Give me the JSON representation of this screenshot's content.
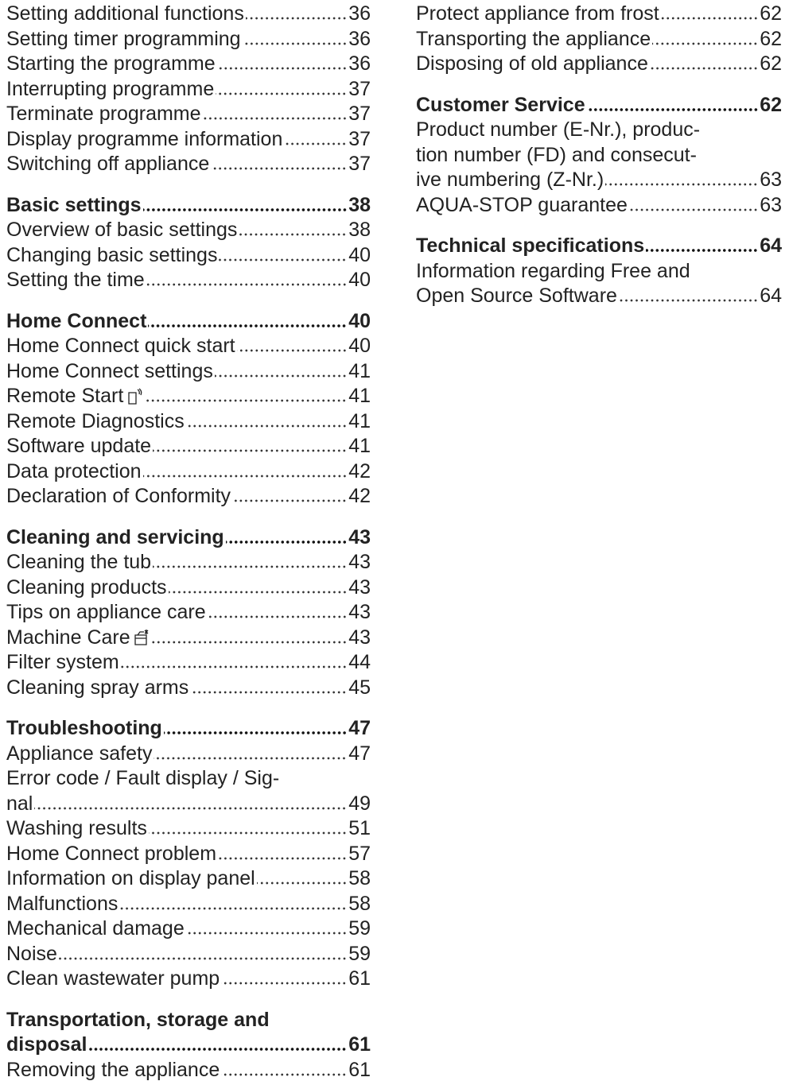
{
  "columns": [
    {
      "sections": [
        {
          "entries": [
            {
              "lines": [
                "Setting additional functions"
              ],
              "page": 36
            },
            {
              "lines": [
                "Setting timer programming"
              ],
              "page": 36
            },
            {
              "lines": [
                "Starting the programme"
              ],
              "page": 36
            },
            {
              "lines": [
                "Interrupting programme"
              ],
              "page": 37
            },
            {
              "lines": [
                "Terminate programme"
              ],
              "page": 37
            },
            {
              "lines": [
                "Display programme information"
              ],
              "page": 37
            },
            {
              "lines": [
                "Switching off appliance"
              ],
              "page": 37
            }
          ]
        },
        {
          "heading": {
            "lines": [
              "Basic settings"
            ],
            "page": 38
          },
          "entries": [
            {
              "lines": [
                "Overview of basic settings"
              ],
              "page": 38
            },
            {
              "lines": [
                "Changing basic settings"
              ],
              "page": 40
            },
            {
              "lines": [
                "Setting the time"
              ],
              "page": 40
            }
          ]
        },
        {
          "heading": {
            "lines": [
              "Home Connect"
            ],
            "page": 40
          },
          "entries": [
            {
              "lines": [
                "Home Connect quick start"
              ],
              "page": 40
            },
            {
              "lines": [
                "Home Connect settings"
              ],
              "page": 41
            },
            {
              "lines": [
                "Remote Start"
              ],
              "page": 41,
              "icon": "remote-start"
            },
            {
              "lines": [
                "Remote Diagnostics"
              ],
              "page": 41
            },
            {
              "lines": [
                "Software update"
              ],
              "page": 41
            },
            {
              "lines": [
                "Data protection"
              ],
              "page": 42
            },
            {
              "lines": [
                "Declaration of Conformity"
              ],
              "page": 42
            }
          ]
        },
        {
          "heading": {
            "lines": [
              "Cleaning and servicing"
            ],
            "page": 43
          },
          "entries": [
            {
              "lines": [
                "Cleaning the tub"
              ],
              "page": 43
            },
            {
              "lines": [
                "Cleaning products"
              ],
              "page": 43
            },
            {
              "lines": [
                "Tips on appliance care"
              ],
              "page": 43
            },
            {
              "lines": [
                "Machine Care"
              ],
              "page": 43,
              "icon": "machine-care"
            },
            {
              "lines": [
                "Filter system"
              ],
              "page": 44
            },
            {
              "lines": [
                "Cleaning spray arms"
              ],
              "page": 45
            }
          ]
        },
        {
          "heading": {
            "lines": [
              "Troubleshooting"
            ],
            "page": 47
          },
          "entries": [
            {
              "lines": [
                "Appliance safety"
              ],
              "page": 47
            },
            {
              "lines": [
                "Error code / Fault display / Sig-",
                "nal"
              ],
              "page": 49
            },
            {
              "lines": [
                "Washing results"
              ],
              "page": 51
            },
            {
              "lines": [
                "Home Connect problem"
              ],
              "page": 57
            },
            {
              "lines": [
                "Information on display panel"
              ],
              "page": 58
            },
            {
              "lines": [
                "Malfunctions"
              ],
              "page": 58
            },
            {
              "lines": [
                "Mechanical damage"
              ],
              "page": 59
            },
            {
              "lines": [
                "Noise"
              ],
              "page": 59
            },
            {
              "lines": [
                "Clean wastewater pump"
              ],
              "page": 61
            }
          ]
        },
        {
          "heading": {
            "lines": [
              "Transportation, storage and",
              "disposal"
            ],
            "page": 61
          },
          "entries": [
            {
              "lines": [
                "Removing the appliance"
              ],
              "page": 61
            }
          ]
        }
      ]
    },
    {
      "sections": [
        {
          "entries": [
            {
              "lines": [
                "Protect appliance from frost"
              ],
              "page": 62
            },
            {
              "lines": [
                "Transporting the appliance"
              ],
              "page": 62
            },
            {
              "lines": [
                "Disposing of old appliance"
              ],
              "page": 62
            }
          ]
        },
        {
          "heading": {
            "lines": [
              "Customer Service"
            ],
            "page": 62
          },
          "entries": [
            {
              "lines": [
                "Product number (E-Nr.), produc-",
                "tion number (FD) and consecut-",
                "ive numbering (Z-Nr.)"
              ],
              "page": 63
            },
            {
              "lines": [
                "AQUA-STOP guarantee"
              ],
              "page": 63
            }
          ]
        },
        {
          "heading": {
            "lines": [
              "Technical specifications"
            ],
            "page": 64
          },
          "entries": [
            {
              "lines": [
                "Information regarding Free and",
                "Open Source Software"
              ],
              "page": 64
            }
          ]
        }
      ]
    }
  ]
}
